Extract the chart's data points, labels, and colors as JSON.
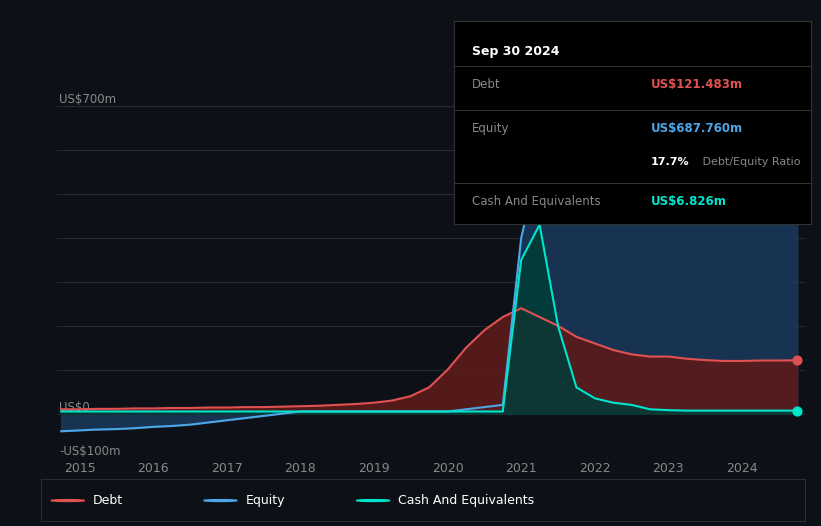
{
  "bg_color": "#0d1117",
  "plot_bg_color": "#0d1117",
  "info_box": {
    "date": "Sep 30 2024",
    "debt_label": "Debt",
    "debt_value": "US$121.483m",
    "debt_color": "#e05252",
    "equity_label": "Equity",
    "equity_value": "US$687.760m",
    "equity_color": "#4da6e8",
    "ratio_value": "17.7%",
    "ratio_text": " Debt/Equity Ratio",
    "cash_label": "Cash And Equivalents",
    "cash_value": "US$6.826m",
    "cash_color": "#00e5cc"
  },
  "ylim": [
    -100,
    750
  ],
  "grid_color": "#2a2f3a",
  "text_color": "#888888",
  "years": [
    2014.75,
    2015.0,
    2015.25,
    2015.5,
    2015.75,
    2016.0,
    2016.25,
    2016.5,
    2016.75,
    2017.0,
    2017.25,
    2017.5,
    2017.75,
    2018.0,
    2018.25,
    2018.5,
    2018.75,
    2019.0,
    2019.25,
    2019.5,
    2019.75,
    2020.0,
    2020.25,
    2020.5,
    2020.75,
    2021.0,
    2021.25,
    2021.5,
    2021.75,
    2022.0,
    2022.25,
    2022.5,
    2022.75,
    2023.0,
    2023.25,
    2023.5,
    2023.75,
    2024.0,
    2024.25,
    2024.5,
    2024.75
  ],
  "debt": [
    10,
    10,
    11,
    11,
    12,
    12,
    13,
    13,
    14,
    14,
    15,
    15,
    16,
    17,
    18,
    20,
    22,
    25,
    30,
    40,
    60,
    100,
    150,
    190,
    220,
    240,
    220,
    200,
    175,
    160,
    145,
    135,
    130,
    130,
    125,
    122,
    120,
    120,
    121,
    121,
    121.5
  ],
  "equity": [
    -40,
    -38,
    -36,
    -35,
    -33,
    -30,
    -28,
    -25,
    -20,
    -15,
    -10,
    -5,
    0,
    5,
    5,
    5,
    5,
    5,
    5,
    5,
    5,
    5,
    10,
    15,
    20,
    400,
    580,
    610,
    620,
    650,
    630,
    610,
    600,
    600,
    610,
    620,
    630,
    640,
    660,
    680,
    688
  ],
  "cash": [
    5,
    5,
    5,
    5,
    5,
    5,
    5,
    5,
    5,
    5,
    5,
    5,
    5,
    5,
    5,
    5,
    5,
    5,
    5,
    5,
    5,
    5,
    5,
    5,
    5,
    350,
    430,
    200,
    60,
    35,
    25,
    20,
    10,
    8,
    7,
    7,
    7,
    7,
    7,
    7,
    6.8
  ],
  "debt_color": "#e05252",
  "debt_fill": "#5c1a1a",
  "equity_color": "#4da6e8",
  "equity_fill": "#1a3a5c",
  "cash_color": "#00e5cc",
  "cash_fill": "#003d38",
  "legend_items": [
    {
      "label": "Debt",
      "color": "#e05252"
    },
    {
      "label": "Equity",
      "color": "#4da6e8"
    },
    {
      "label": "Cash And Equivalents",
      "color": "#00e5cc"
    }
  ],
  "xtick_years": [
    2015,
    2016,
    2017,
    2018,
    2019,
    2020,
    2021,
    2022,
    2023,
    2024
  ],
  "grid_yticks": [
    -100,
    0,
    100,
    200,
    300,
    400,
    500,
    600,
    700
  ]
}
